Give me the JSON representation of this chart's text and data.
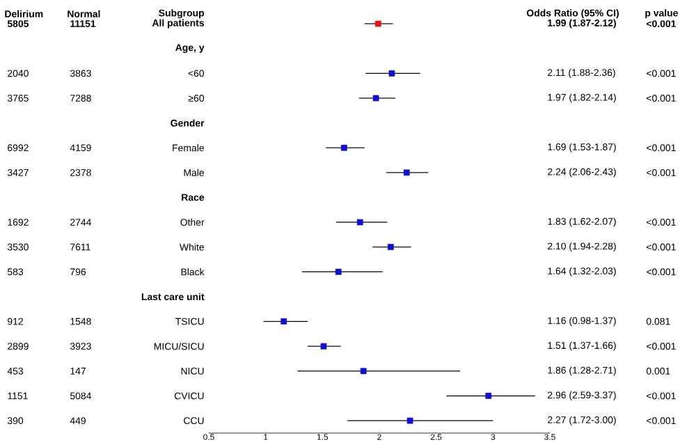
{
  "chart_data": {
    "type": "scatter",
    "orientation": "horizontal",
    "categories": [
      "All patients",
      "Age, y",
      "<60",
      "≥60",
      "Gender",
      "Female",
      "Male",
      "Race",
      "Other",
      "White",
      "Black",
      "Last care unit",
      "TSICU",
      "MICU/SICU",
      "NICU",
      "CVICU",
      "CCU"
    ],
    "values": [
      1.99,
      null,
      2.11,
      1.97,
      null,
      1.69,
      2.24,
      null,
      1.83,
      2.1,
      1.64,
      null,
      1.16,
      1.51,
      1.86,
      2.96,
      2.27
    ],
    "errors": [
      [
        1.87,
        2.12
      ],
      null,
      [
        1.88,
        2.36
      ],
      [
        1.82,
        2.14
      ],
      null,
      [
        1.53,
        1.87
      ],
      [
        2.06,
        2.43
      ],
      null,
      [
        1.62,
        2.07
      ],
      [
        1.94,
        2.28
      ],
      [
        1.32,
        2.03
      ],
      null,
      [
        0.98,
        1.37
      ],
      [
        1.37,
        1.66
      ],
      [
        1.28,
        2.71
      ],
      [
        2.59,
        3.37
      ],
      [
        1.72,
        3.0
      ]
    ],
    "value_labels": [
      "1.99 (1.87-2.12)",
      null,
      "2.11 (1.88-2.36)",
      "1.97 (1.82-2.14)",
      null,
      "1.69 (1.53-1.87)",
      "2.24 (2.06-2.43)",
      null,
      "1.83 (1.62-2.07)",
      "2.10 (1.94-2.28)",
      "1.64 (1.32-2.03)",
      null,
      "1.16 (0.98-1.37)",
      "1.51 (1.37-1.66)",
      "1.86 (1.28-2.71)",
      "2.96 (2.59-3.37)",
      "2.27 (1.72-3.00)"
    ],
    "colors": [
      "#e8141c",
      null,
      "#1010cc",
      "#1010cc",
      null,
      "#1010cc",
      "#1010cc",
      null,
      "#1010cc",
      "#1010cc",
      "#1010cc",
      null,
      "#1010cc",
      "#1010cc",
      "#1010cc",
      "#1010cc",
      "#1010cc"
    ],
    "xlim": [
      0.5,
      3.5
    ],
    "xticks": [
      0.5,
      1,
      1.5,
      2,
      2.5,
      3,
      3.5
    ],
    "marker": "square",
    "annotations": [
      "Delirium",
      "Normal",
      "Subgroup",
      "Odds Ratio (95% CI)",
      "p value",
      "5805",
      "11151",
      "<0.001",
      "2040",
      "3863",
      "<0.001",
      "3765",
      "7288",
      "<0.001",
      "6992",
      "4159",
      "<0.001",
      "3427",
      "2378",
      "<0.001",
      "1692",
      "2744",
      "<0.001",
      "3530",
      "7611",
      "<0.001",
      "583",
      "796",
      "<0.001",
      "912",
      "1548",
      "0.081",
      "2899",
      "3923",
      "<0.001",
      "453",
      "147",
      "0.001",
      "1151",
      "5084",
      "<0.001",
      "390",
      "449",
      "<0.001"
    ]
  }
}
